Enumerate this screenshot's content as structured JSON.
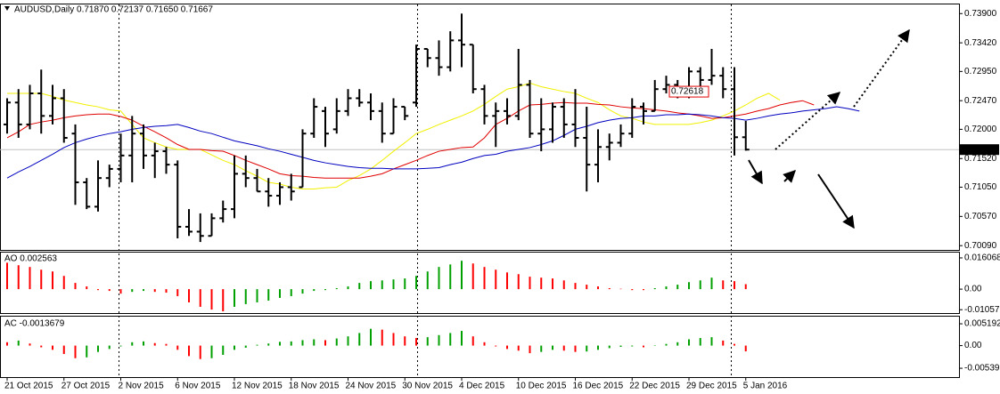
{
  "chart_data": [
    {
      "type": "ohlc",
      "title": "AUDUSD,Daily 0.71870 0.72137 0.71650 0.71667",
      "categories": [
        "21 Oct 2015",
        null,
        null,
        null,
        null,
        "27 Oct 2015",
        null,
        null,
        null,
        null,
        "2 Nov 2015",
        null,
        null,
        null,
        null,
        "6 Nov 2015",
        null,
        null,
        null,
        null,
        "12 Nov 2015",
        null,
        null,
        null,
        null,
        "18 Nov 2015",
        null,
        null,
        null,
        null,
        "24 Nov 2015",
        null,
        null,
        null,
        null,
        "30 Nov 2015",
        null,
        null,
        null,
        null,
        "4 Dec 2015",
        null,
        null,
        null,
        null,
        "10 Dec 2015",
        null,
        null,
        null,
        null,
        "16 Dec 2015",
        null,
        null,
        null,
        null,
        "22 Dec 2015",
        null,
        null,
        null,
        null,
        "29 Dec 2015",
        null,
        null,
        null,
        null,
        "5 Jan 2016",
        null,
        null,
        null,
        null,
        null,
        null,
        null,
        null,
        null,
        null
      ],
      "open": [
        0.7208,
        0.7244,
        0.7208,
        0.7259,
        0.7222,
        0.7251,
        0.7193,
        0.7113,
        0.7073,
        0.712,
        0.7135,
        0.7157,
        0.7193,
        0.7157,
        0.7164,
        0.7142,
        0.704,
        0.7032,
        0.7025,
        0.7054,
        0.7069,
        0.7127,
        0.712,
        0.7098,
        0.7091,
        0.7105,
        0.7105,
        0.7193,
        0.723,
        0.72,
        0.723,
        0.7251,
        0.7244,
        0.723,
        0.7193,
        0.7237,
        0.7244,
        0.7332,
        0.7317,
        0.7302,
        0.7346,
        0.7339,
        0.7266,
        0.7222,
        0.723,
        0.7222,
        0.7273,
        0.7193,
        0.72,
        0.7237,
        0.7208,
        0.7186,
        0.7142,
        0.7171,
        0.7178,
        0.7193,
        0.7237,
        0.723,
        0.7266,
        0.7273,
        0.7266,
        0.7295,
        0.7281,
        0.7288,
        0.7266,
        0.7187,
        null,
        null,
        null,
        null,
        null,
        null,
        null,
        null,
        null,
        null
      ],
      "high": [
        0.7251,
        0.7266,
        0.7273,
        0.7298,
        0.7273,
        0.7266,
        0.7208,
        0.712,
        0.7149,
        0.7142,
        0.7193,
        0.7222,
        0.7208,
        0.7178,
        0.7171,
        0.7149,
        0.7069,
        0.7062,
        0.7062,
        0.7083,
        0.7157,
        0.7157,
        0.7135,
        0.712,
        0.7113,
        0.7127,
        0.72,
        0.7251,
        0.7237,
        0.7251,
        0.7266,
        0.7266,
        0.7259,
        0.7244,
        0.7251,
        0.7237,
        0.7339,
        0.7332,
        0.7346,
        0.7361,
        0.739,
        0.7339,
        0.7273,
        0.7244,
        0.7251,
        0.7332,
        0.7281,
        0.7251,
        0.7244,
        0.7251,
        0.7266,
        0.7237,
        0.72,
        0.7193,
        0.7208,
        0.7251,
        0.7244,
        0.7281,
        0.7288,
        0.7281,
        0.7302,
        0.7302,
        0.7332,
        0.7302,
        0.7302,
        0.72137,
        null,
        null,
        null,
        null,
        null,
        null,
        null,
        null,
        null,
        null
      ],
      "low": [
        0.7193,
        0.7186,
        0.72,
        0.7193,
        0.7208,
        0.7178,
        0.7076,
        0.7069,
        0.7065,
        0.7105,
        0.7113,
        0.7113,
        0.7135,
        0.712,
        0.7127,
        0.7021,
        0.7025,
        0.7015,
        0.7025,
        0.7047,
        0.7054,
        0.7105,
        0.7098,
        0.7073,
        0.7076,
        0.7083,
        0.7105,
        0.7186,
        0.7171,
        0.7193,
        0.7222,
        0.7237,
        0.7215,
        0.7178,
        0.7193,
        0.7215,
        0.7237,
        0.7302,
        0.7288,
        0.7295,
        0.7302,
        0.7259,
        0.7208,
        0.7171,
        0.7208,
        0.7215,
        0.7186,
        0.7164,
        0.7178,
        0.7186,
        0.7171,
        0.7098,
        0.7113,
        0.7149,
        0.7171,
        0.7186,
        0.7208,
        0.723,
        0.7259,
        0.7251,
        0.7251,
        0.7266,
        0.7273,
        0.7251,
        0.7157,
        0.7165,
        null,
        null,
        null,
        null,
        null,
        null,
        null,
        null,
        null,
        null
      ],
      "close": [
        0.7244,
        0.7208,
        0.7259,
        0.7222,
        0.7251,
        0.7186,
        0.7113,
        0.7073,
        0.712,
        0.7135,
        0.7157,
        0.7193,
        0.7157,
        0.7164,
        0.7142,
        0.704,
        0.7032,
        0.7025,
        0.7054,
        0.7069,
        0.7127,
        0.712,
        0.7098,
        0.7091,
        0.7105,
        0.7098,
        0.7193,
        0.7237,
        0.7193,
        0.723,
        0.7251,
        0.7244,
        0.723,
        0.7193,
        0.7237,
        0.7222,
        0.7332,
        0.7317,
        0.7302,
        0.7346,
        0.7339,
        0.7266,
        0.7222,
        0.723,
        0.7222,
        0.7273,
        0.7193,
        0.72,
        0.7237,
        0.7208,
        0.7186,
        0.7142,
        0.7171,
        0.7178,
        0.7193,
        0.7237,
        0.723,
        0.7266,
        0.7273,
        0.7266,
        0.7295,
        0.7281,
        0.7288,
        0.7266,
        0.7187,
        0.71667,
        null,
        null,
        null,
        null,
        null,
        null,
        null,
        null,
        null,
        null
      ],
      "color": "#000000",
      "series": [
        {
          "color": "#f0f000",
          "values": [
            0.7259,
            0.7259,
            0.7259,
            0.7259,
            0.7254,
            0.7248,
            0.7244,
            0.724,
            0.7237,
            0.7232,
            0.723,
            0.7208,
            0.7186,
            0.7178,
            0.7171,
            0.7167,
            0.7167,
            0.7167,
            0.7158,
            0.7149,
            0.7142,
            0.7132,
            0.7123,
            0.7113,
            0.711,
            0.7105,
            0.7102,
            0.7102,
            0.7104,
            0.7105,
            0.7116,
            0.7124,
            0.7135,
            0.7149,
            0.7164,
            0.7178,
            0.7193,
            0.72,
            0.7208,
            0.7215,
            0.7222,
            0.723,
            0.7241,
            0.7254,
            0.7266,
            0.727,
            0.7276,
            0.727,
            0.7266,
            0.7262,
            0.7259,
            0.7251,
            0.7244,
            0.7232,
            0.7222,
            0.7218,
            0.7212,
            0.7208,
            0.7208,
            0.7208,
            0.7208,
            0.7211,
            0.7215,
            0.7222,
            0.723,
            0.724,
            0.7251,
            0.7259,
            0.7248,
            null,
            null,
            null,
            null,
            null,
            null,
            null
          ]
        },
        {
          "color": "#e00000",
          "values": [
            0.7186,
            0.7196,
            0.7208,
            0.7212,
            0.7215,
            0.7219,
            0.7222,
            0.7224,
            0.7225,
            0.7225,
            0.7221,
            0.7215,
            0.7205,
            0.7196,
            0.7186,
            0.7175,
            0.7167,
            0.7167,
            0.7165,
            0.7164,
            0.7157,
            0.7149,
            0.7142,
            0.7135,
            0.7127,
            0.7124,
            0.7123,
            0.7121,
            0.712,
            0.712,
            0.712,
            0.712,
            0.7123,
            0.7127,
            0.7135,
            0.7142,
            0.7149,
            0.7157,
            0.7164,
            0.7167,
            0.717,
            0.7171,
            0.7186,
            0.7208,
            0.7218,
            0.723,
            0.724,
            0.7241,
            0.7243,
            0.7244,
            0.7243,
            0.7243,
            0.7241,
            0.724,
            0.7237,
            0.7235,
            0.7234,
            0.7232,
            0.723,
            0.7227,
            0.7225,
            0.7222,
            0.7218,
            0.7219,
            0.7222,
            0.7225,
            0.723,
            0.7234,
            0.724,
            0.7244,
            0.7247,
            0.724,
            null,
            null,
            null,
            null
          ]
        },
        {
          "color": "#0000c0",
          "values": [
            0.712,
            0.713,
            0.7139,
            0.7149,
            0.7159,
            0.717,
            0.7178,
            0.7184,
            0.7189,
            0.7193,
            0.7196,
            0.72,
            0.7203,
            0.7205,
            0.7206,
            0.7208,
            0.7203,
            0.7197,
            0.7193,
            0.7187,
            0.7181,
            0.7177,
            0.7173,
            0.7168,
            0.7164,
            0.7159,
            0.7154,
            0.7149,
            0.7145,
            0.7142,
            0.7139,
            0.7137,
            0.7136,
            0.7136,
            0.7135,
            0.7135,
            0.7135,
            0.7136,
            0.7137,
            0.7142,
            0.7146,
            0.7152,
            0.7157,
            0.7159,
            0.7164,
            0.7167,
            0.717,
            0.7175,
            0.7181,
            0.719,
            0.72,
            0.7205,
            0.7211,
            0.7215,
            0.7218,
            0.7219,
            0.7222,
            0.7222,
            0.7224,
            0.7224,
            0.7225,
            0.7224,
            0.7222,
            0.7219,
            0.7218,
            0.7215,
            0.7218,
            0.7222,
            0.7225,
            0.7227,
            0.723,
            0.7232,
            0.7234,
            0.7237,
            0.7234,
            0.723
          ]
        }
      ],
      "ylim": [
        0.7002,
        0.7405
      ],
      "yticks": [
        {
          "value": 0.739,
          "label": "0.73900"
        },
        {
          "value": 0.7342,
          "label": "0.73420"
        },
        {
          "value": 0.7295,
          "label": "0.72950"
        },
        {
          "value": 0.7247,
          "label": "0.72470"
        },
        {
          "value": 0.72,
          "label": "0.72000"
        },
        {
          "value": 0.7152,
          "label": "0.71520"
        },
        {
          "value": 0.7105,
          "label": "0.71050"
        },
        {
          "value": 0.7057,
          "label": "0.70570"
        },
        {
          "value": 0.7009,
          "label": "0.70090"
        }
      ],
      "current_price": 0.71667,
      "price_label": 0.72618
    },
    {
      "type": "histogram",
      "title": "AO 0.002563",
      "values": [
        0.0136,
        0.0123,
        0.0114,
        0.01,
        0.0091,
        0.0068,
        0.0032,
        0.0014,
        -0.0005,
        -0.0009,
        -0.0023,
        -0.0014,
        -0.0009,
        -0.0014,
        -0.0018,
        -0.0036,
        -0.0068,
        -0.0091,
        -0.0105,
        -0.0114,
        -0.0091,
        -0.0077,
        -0.0068,
        -0.0059,
        -0.0045,
        -0.0036,
        -0.0023,
        -0.0009,
        -0.0005,
        0.0005,
        0.0014,
        0.0032,
        0.0041,
        0.0045,
        0.005,
        0.0055,
        0.0068,
        0.0091,
        0.0114,
        0.0127,
        0.0146,
        0.0132,
        0.0114,
        0.01,
        0.0086,
        0.0077,
        0.0064,
        0.0059,
        0.0055,
        0.0045,
        0.0032,
        0.0023,
        0.0014,
        0.0005,
        0.0002,
        -0.0005,
        -0.0005,
        0.0005,
        0.0014,
        0.0023,
        0.0036,
        0.0045,
        0.0059,
        0.0045,
        0.0041,
        0.002563,
        null,
        null,
        null,
        null,
        null,
        null,
        null,
        null,
        null,
        null
      ],
      "up_color": "#00a000",
      "down_color": "#ff0000",
      "ylim": [
        -0.0123,
        0.0188
      ],
      "yticks": [
        0.016068,
        {
          "value": 0,
          "label": "0.00"
        },
        -0.01057
      ]
    },
    {
      "type": "histogram",
      "title": "AC -0.0013679",
      "values": [
        0.0008,
        0.0012,
        0.0005,
        -0.0004,
        -0.001,
        -0.002,
        -0.003,
        -0.0028,
        -0.0015,
        -0.0008,
        -0.0002,
        0.0008,
        0.001,
        0.0006,
        0.0004,
        -0.001,
        -0.0025,
        -0.0032,
        -0.003,
        -0.0022,
        -0.001,
        -0.0005,
        0.0002,
        0.0005,
        0.0009,
        0.001,
        0.0013,
        0.0015,
        0.0013,
        0.0017,
        0.0022,
        0.003,
        0.004,
        0.0038,
        0.003,
        0.0022,
        0.0018,
        0.002,
        0.0025,
        0.003,
        0.0035,
        0.0022,
        0.0008,
        -0.0002,
        -0.0008,
        -0.0012,
        -0.0018,
        -0.0015,
        -0.001,
        -0.0012,
        -0.0015,
        -0.0014,
        -0.001,
        -0.0006,
        -0.0003,
        -0.0002,
        -0.0004,
        0.0001,
        0.0004,
        0.0008,
        0.0015,
        0.0018,
        0.002,
        0.0012,
        0.0004,
        -0.0013679,
        null,
        null,
        null,
        null,
        null,
        null,
        null,
        null,
        null,
        null
      ],
      "up_color": "#00a000",
      "down_color": "#ff0000",
      "ylim": [
        -0.0075,
        0.0069
      ],
      "yticks": [
        0.005192,
        {
          "value": 0,
          "label": "0.00"
        },
        -0.005397
      ]
    }
  ]
}
